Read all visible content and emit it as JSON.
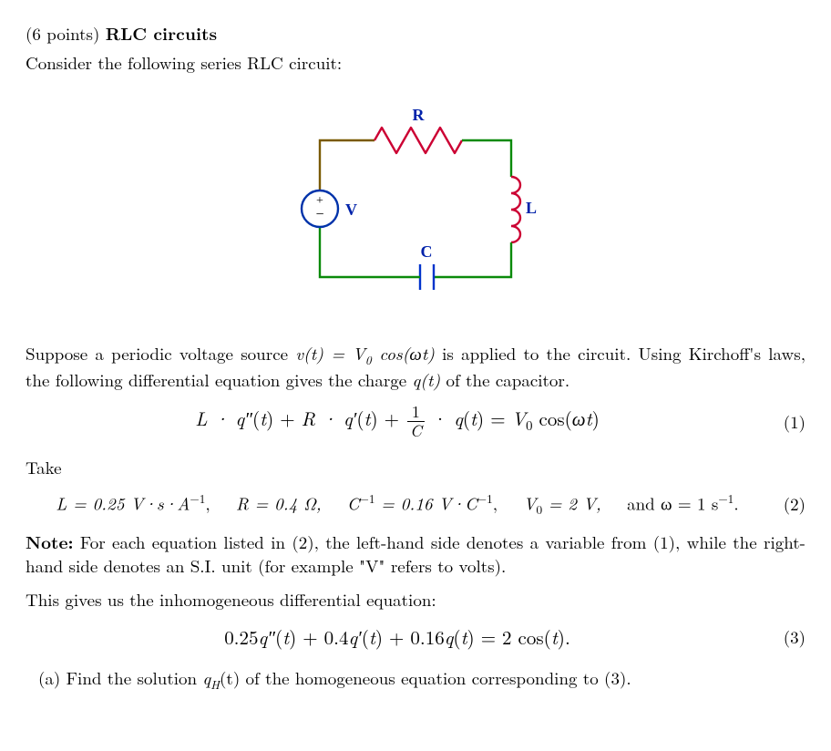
{
  "title": {
    "points": "(6 points)",
    "name": "RLC circuits"
  },
  "intro": "Consider the following series RLC circuit:",
  "circuit": {
    "labels": {
      "R": "R",
      "L": "L",
      "C": "C",
      "V": "V"
    },
    "colors": {
      "wire_top_left": "#7a5a00",
      "wire_top_right": "#0a8a0a",
      "wire_right": "#0a8a0a",
      "wire_bottom": "#0a8a0a",
      "wire_left": "#7a5a00",
      "resistor": "#cc0033",
      "inductor": "#cc0033",
      "capacitor": "#0033cc",
      "source": "#0033aa",
      "label": "#0022aa"
    }
  },
  "para1_a": "Suppose a periodic voltage source ",
  "para1_b": " is applied to the circuit. Using Kirchoff's laws, the following differential equation gives the charge ",
  "para1_c": " of the capacitor.",
  "eq1": {
    "L": "L",
    "qpp": "q″(t)",
    "R": "R",
    "qp": "q′(t)",
    "C": "C",
    "q": "q(t)",
    "rhs_V0": "V",
    "rhs_cos": " cos(ωt)",
    "num": "(1)"
  },
  "take": "Take",
  "params": {
    "L": "L = 0.25 V·s·A",
    "L_sup": "−1",
    "Lcomma": ",",
    "R": "R = 0.4 Ω,",
    "Cinv_a": "C",
    "Cinv_sup": "−1",
    "Cinv_b": " = 0.16 V·C",
    "Cinv_sup2": "−1",
    "Cinv_c": ",",
    "V0_a": "V",
    "V0_b": " = 2 V,",
    "and": "and ω = 1 s",
    "omega_sup": "−1",
    "omega_dot": ".",
    "num": "(2)"
  },
  "note_bold": "Note:",
  "note_text": " For each equation listed in (2), the left-hand side denotes a variable from (1), while the right-hand side denotes an S.I. unit (for example \"V\" refers to volts).",
  "para2": "This gives us the inhomogeneous differential equation:",
  "eq3": {
    "text": "0.25q″(t) + 0.4q′(t) + 0.16q(t) = 2 cos(t).",
    "num": "(3)"
  },
  "partA_label": "(a)",
  "partA_a": " Find the solution ",
  "partA_qH": "q",
  "partA_Hsub": "H",
  "partA_b": "(t) of the homogeneous equation corresponding to (3)."
}
